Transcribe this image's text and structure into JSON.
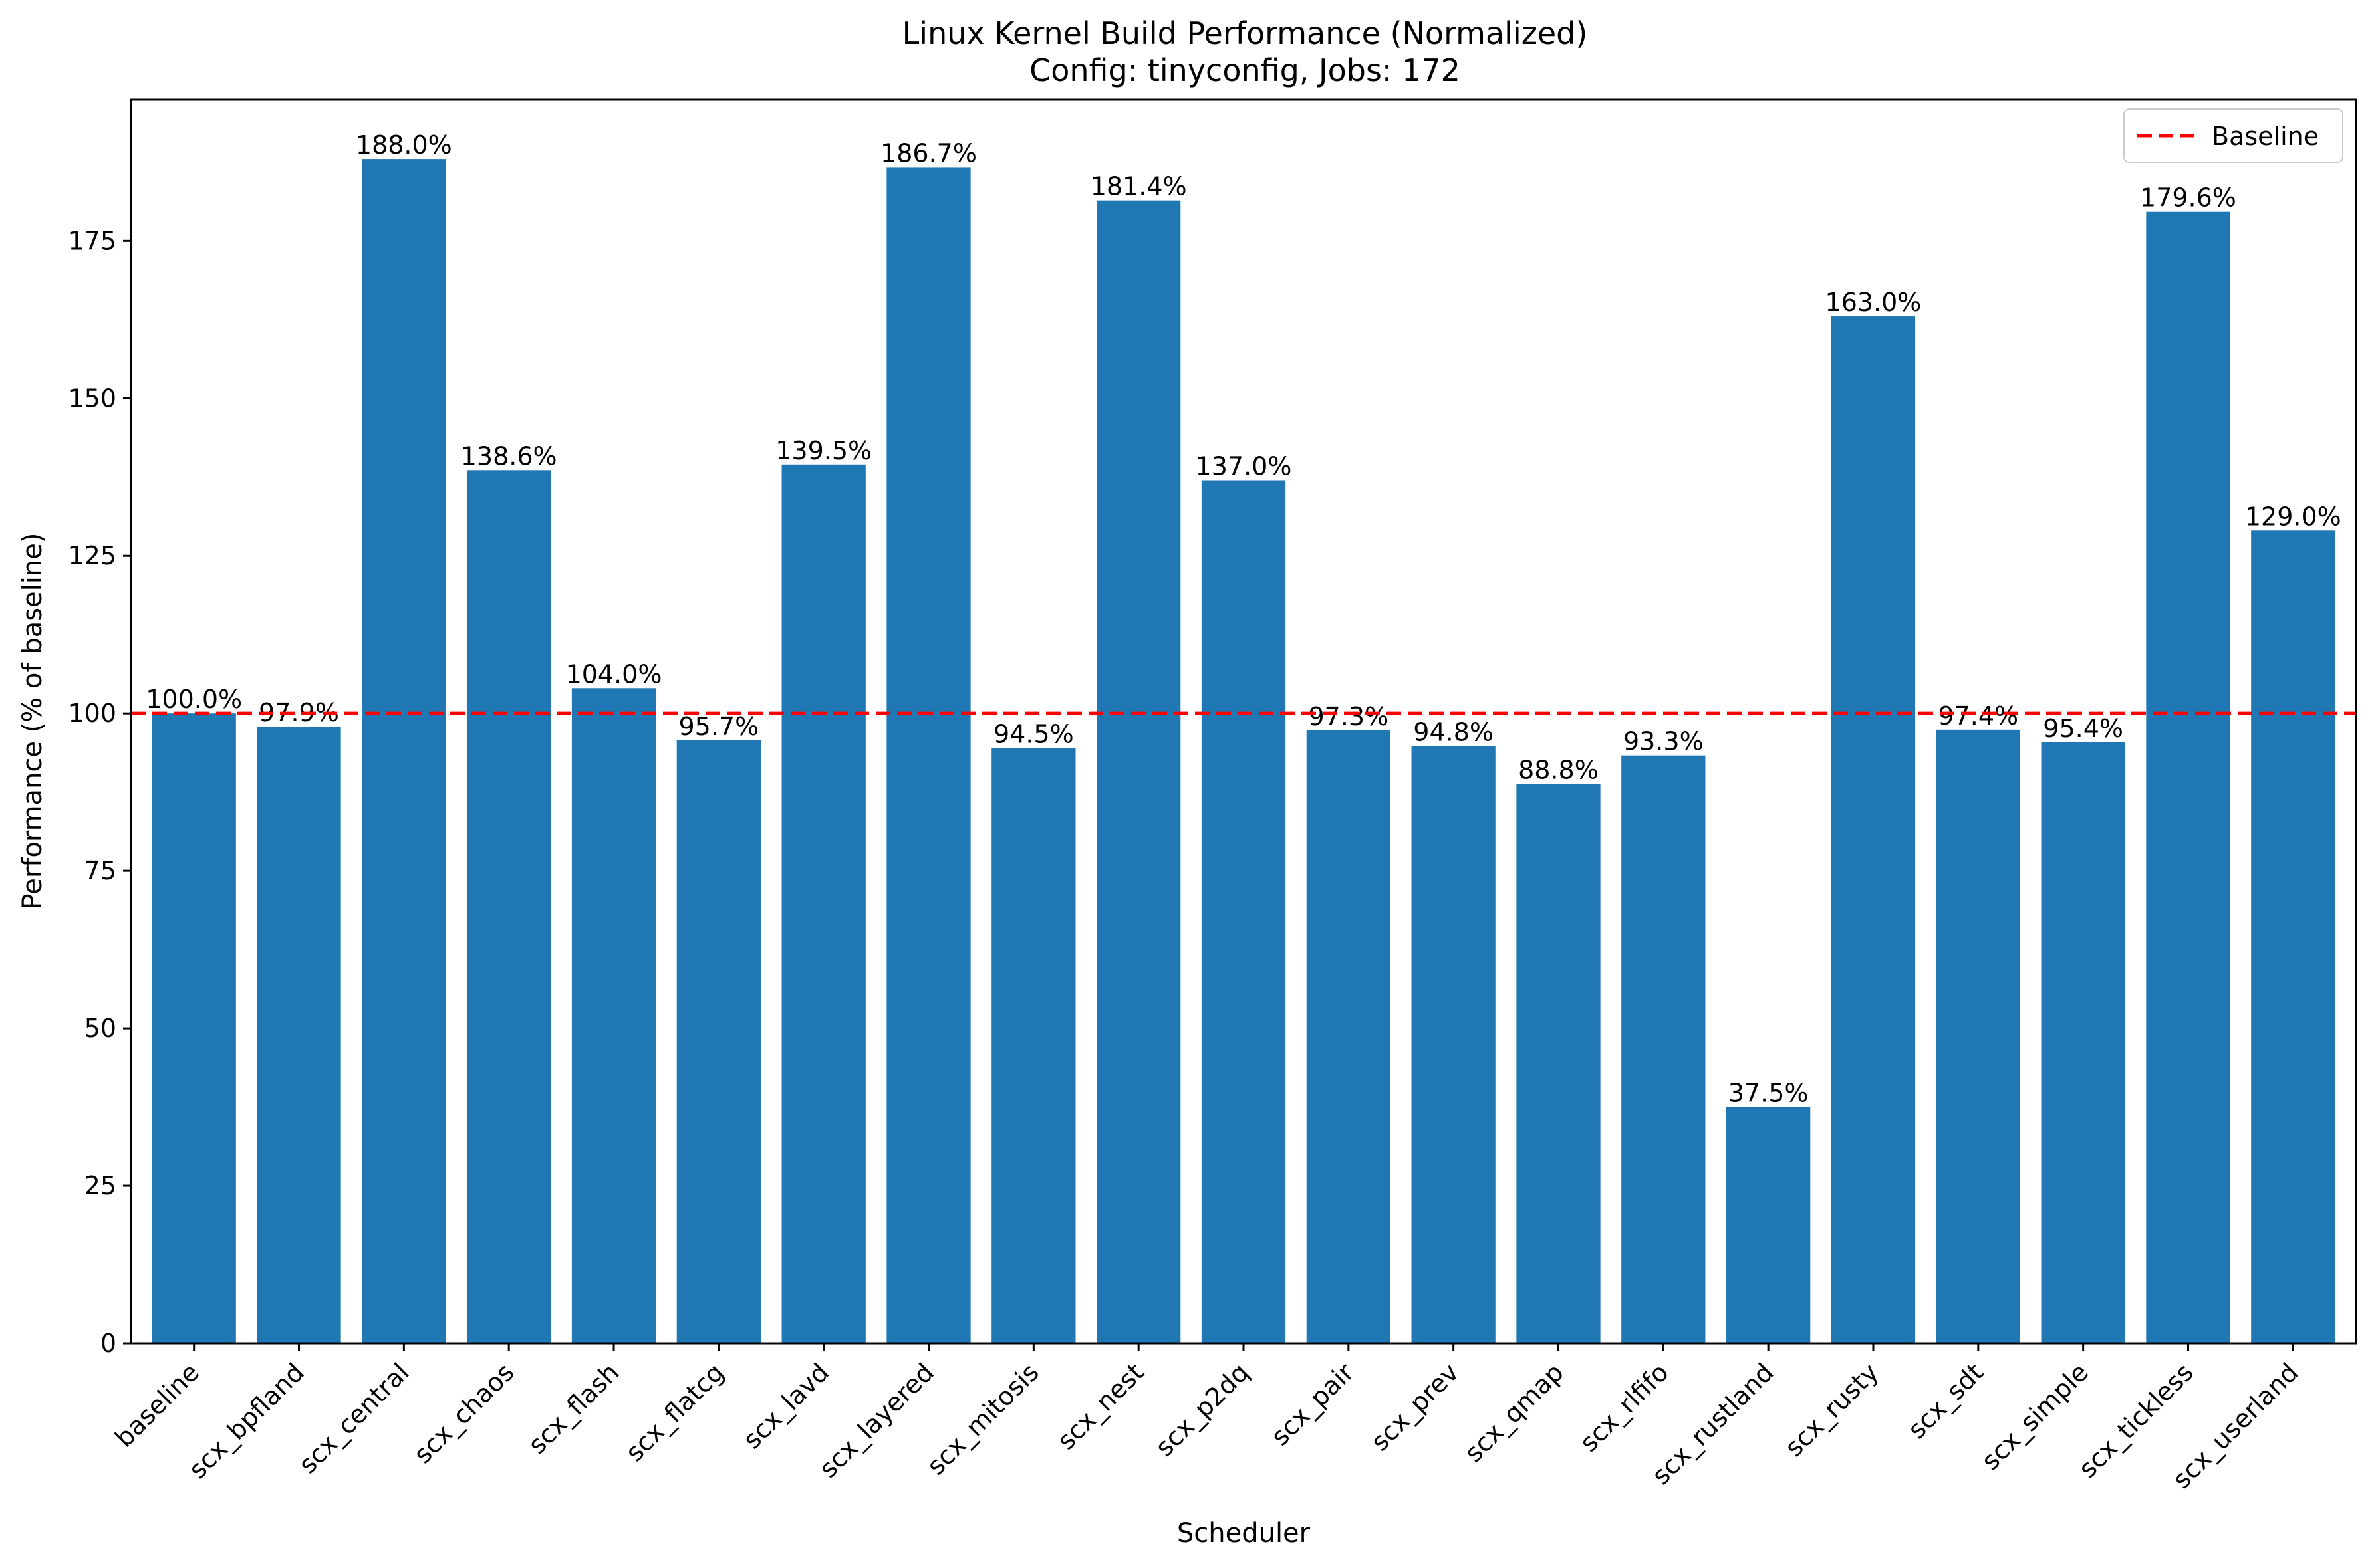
{
  "chart_data": {
    "type": "bar",
    "title": "Linux Kernel Build Performance (Normalized)",
    "subtitle": "Config: tinyconfig, Jobs: 172",
    "xlabel": "Scheduler",
    "ylabel": "Performance (% of baseline)",
    "categories": [
      "baseline",
      "scx_bpfland",
      "scx_central",
      "scx_chaos",
      "scx_flash",
      "scx_flatcg",
      "scx_lavd",
      "scx_layered",
      "scx_mitosis",
      "scx_nest",
      "scx_p2dq",
      "scx_pair",
      "scx_prev",
      "scx_qmap",
      "scx_rlfifo",
      "scx_rustland",
      "scx_rusty",
      "scx_sdt",
      "scx_simple",
      "scx_tickless",
      "scx_userland"
    ],
    "values": [
      100.0,
      97.9,
      188.0,
      138.6,
      104.0,
      95.7,
      139.5,
      186.7,
      94.5,
      181.4,
      137.0,
      97.3,
      94.8,
      88.8,
      93.3,
      37.5,
      163.0,
      97.4,
      95.4,
      179.6,
      129.0
    ],
    "value_labels": [
      "100.0%",
      "97.9%",
      "188.0%",
      "138.6%",
      "104.0%",
      "95.7%",
      "139.5%",
      "186.7%",
      "94.5%",
      "181.4%",
      "137.0%",
      "97.3%",
      "94.8%",
      "88.8%",
      "93.3%",
      "37.5%",
      "163.0%",
      "97.4%",
      "95.4%",
      "179.6%",
      "129.0%"
    ],
    "ylim": [
      0,
      197.4
    ],
    "yticks": [
      0,
      25,
      50,
      75,
      100,
      125,
      150,
      175
    ],
    "reference_line": {
      "value": 100,
      "label": "Baseline",
      "color": "#ff0000",
      "style": "dashed"
    },
    "bar_color": "#1f77b4",
    "legend": {
      "placement": "top-right",
      "entries": [
        "Baseline"
      ]
    },
    "grid": false
  }
}
